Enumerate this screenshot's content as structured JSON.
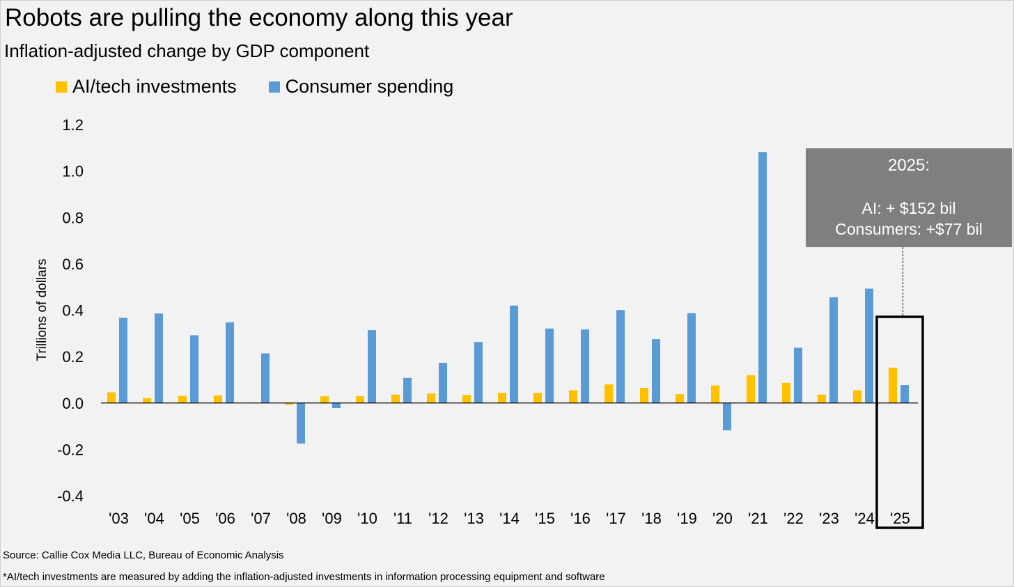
{
  "title": "Robots are pulling the economy along this year",
  "subtitle": "Inflation-adjusted change by GDP component",
  "source": "Source: Callie Cox Media LLC, Bureau of Economic Analysis",
  "footnote": "*AI/tech investments are measured by adding the inflation-adjusted investments in information processing equipment and software",
  "callout": {
    "heading": "2025:",
    "line1": "AI: + $152 bil",
    "line2": "Consumers: +$77 bil"
  },
  "colors": {
    "ai": "#ffc000",
    "consumer": "#5b9bd5",
    "callout_bg": "#7f7f7f",
    "background": "#f2f2f2"
  },
  "chart_data": {
    "type": "bar",
    "ylabel": "Trillions of dollars",
    "ylim": [
      -0.4,
      1.2
    ],
    "yticks": [
      "1.2",
      "1.0",
      "0.8",
      "0.6",
      "0.4",
      "0.2",
      "0.0",
      "-0.2",
      "-0.4"
    ],
    "ytick_values": [
      1.2,
      1.0,
      0.8,
      0.6,
      0.4,
      0.2,
      0.0,
      -0.2,
      -0.4
    ],
    "grid": false,
    "legend_position": "top-left",
    "highlight_category": "'25",
    "categories": [
      "'03",
      "'04",
      "'05",
      "'06",
      "'07",
      "'08",
      "'09",
      "'10",
      "'11",
      "'12",
      "'13",
      "'14",
      "'15",
      "'16",
      "'17",
      "'18",
      "'19",
      "'20",
      "'21",
      "'22",
      "'23",
      "'24",
      "'25"
    ],
    "series": [
      {
        "name": "AI/tech investments",
        "values": [
          0.046,
          0.021,
          0.031,
          0.033,
          0.002,
          -0.008,
          0.029,
          0.029,
          0.036,
          0.041,
          0.035,
          0.044,
          0.044,
          0.055,
          0.08,
          0.065,
          0.038,
          0.076,
          0.12,
          0.087,
          0.036,
          0.055,
          0.152
        ]
      },
      {
        "name": "Consumer spending",
        "values": [
          0.367,
          0.386,
          0.292,
          0.348,
          0.214,
          -0.175,
          -0.022,
          0.314,
          0.108,
          0.173,
          0.263,
          0.42,
          0.321,
          0.317,
          0.401,
          0.275,
          0.387,
          -0.118,
          1.082,
          0.238,
          0.456,
          0.493,
          0.077
        ]
      }
    ]
  }
}
